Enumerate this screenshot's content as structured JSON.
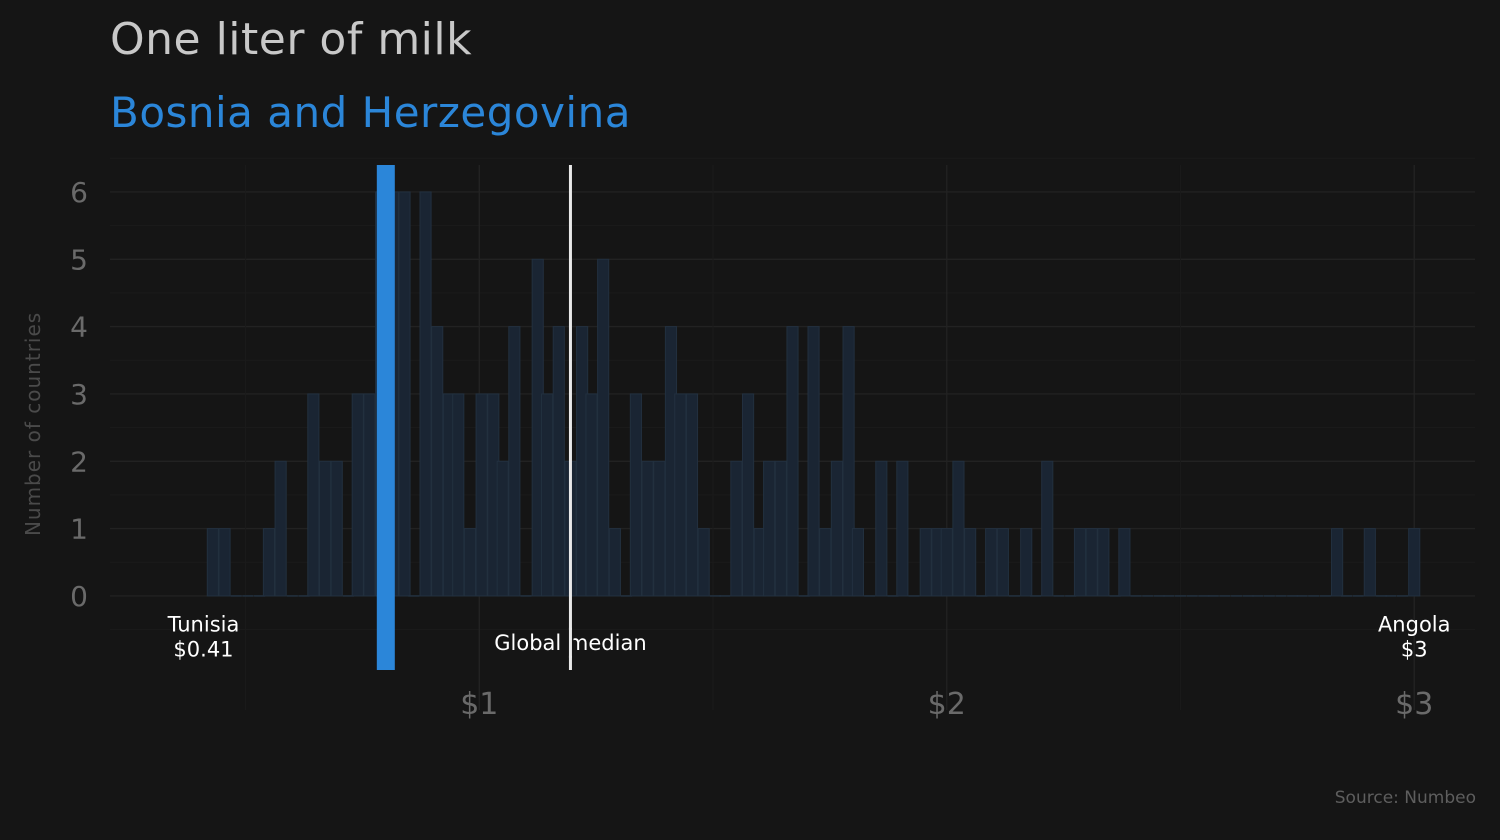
{
  "title": "One liter of milk",
  "subtitle": "Bosnia and Herzegovina",
  "source": "Source: Numbeo",
  "colors": {
    "background": "#151515",
    "highlight": "#2b86d9",
    "bars": "#1a2533",
    "median": "#e8e8e8",
    "text": "#c8c8c8"
  },
  "chart_data": {
    "type": "bar",
    "ylabel": "Number of countries",
    "xlabel": "",
    "x_ticks": [
      {
        "value": 1,
        "label": "$1"
      },
      {
        "value": 2,
        "label": "$2"
      },
      {
        "value": 3,
        "label": "$3"
      }
    ],
    "y_ticks": [
      0,
      1,
      2,
      3,
      4,
      5,
      6
    ],
    "xlim": [
      0.21,
      3.13
    ],
    "ylim": [
      -1.1,
      6.4
    ],
    "bin_width": 0.0238,
    "bins": [
      {
        "x": 0.43,
        "count": 1
      },
      {
        "x": 0.455,
        "count": 1
      },
      {
        "x": 0.48,
        "count": 0
      },
      {
        "x": 0.505,
        "count": 0
      },
      {
        "x": 0.53,
        "count": 0
      },
      {
        "x": 0.55,
        "count": 1
      },
      {
        "x": 0.575,
        "count": 2
      },
      {
        "x": 0.6,
        "count": 0
      },
      {
        "x": 0.625,
        "count": 0
      },
      {
        "x": 0.645,
        "count": 3
      },
      {
        "x": 0.67,
        "count": 2
      },
      {
        "x": 0.695,
        "count": 2
      },
      {
        "x": 0.72,
        "count": 0
      },
      {
        "x": 0.74,
        "count": 3
      },
      {
        "x": 0.765,
        "count": 3
      },
      {
        "x": 0.79,
        "count": 6
      },
      {
        "x": 0.815,
        "count": 6
      },
      {
        "x": 0.84,
        "count": 6
      },
      {
        "x": 0.86,
        "count": 0
      },
      {
        "x": 0.885,
        "count": 6
      },
      {
        "x": 0.91,
        "count": 4
      },
      {
        "x": 0.935,
        "count": 3
      },
      {
        "x": 0.955,
        "count": 3
      },
      {
        "x": 0.98,
        "count": 1
      },
      {
        "x": 1.005,
        "count": 3
      },
      {
        "x": 1.03,
        "count": 3
      },
      {
        "x": 1.05,
        "count": 2
      },
      {
        "x": 1.075,
        "count": 4
      },
      {
        "x": 1.1,
        "count": 0
      },
      {
        "x": 1.125,
        "count": 5
      },
      {
        "x": 1.145,
        "count": 3
      },
      {
        "x": 1.17,
        "count": 4
      },
      {
        "x": 1.195,
        "count": 2
      },
      {
        "x": 1.22,
        "count": 4
      },
      {
        "x": 1.24,
        "count": 3
      },
      {
        "x": 1.265,
        "count": 5
      },
      {
        "x": 1.29,
        "count": 1
      },
      {
        "x": 1.315,
        "count": 0
      },
      {
        "x": 1.335,
        "count": 3
      },
      {
        "x": 1.36,
        "count": 2
      },
      {
        "x": 1.385,
        "count": 2
      },
      {
        "x": 1.41,
        "count": 4
      },
      {
        "x": 1.43,
        "count": 3
      },
      {
        "x": 1.455,
        "count": 3
      },
      {
        "x": 1.48,
        "count": 1
      },
      {
        "x": 1.505,
        "count": 0
      },
      {
        "x": 1.525,
        "count": 0
      },
      {
        "x": 1.55,
        "count": 2
      },
      {
        "x": 1.575,
        "count": 3
      },
      {
        "x": 1.6,
        "count": 1
      },
      {
        "x": 1.62,
        "count": 2
      },
      {
        "x": 1.645,
        "count": 2
      },
      {
        "x": 1.67,
        "count": 4
      },
      {
        "x": 1.695,
        "count": 0
      },
      {
        "x": 1.715,
        "count": 4
      },
      {
        "x": 1.74,
        "count": 1
      },
      {
        "x": 1.765,
        "count": 2
      },
      {
        "x": 1.79,
        "count": 4
      },
      {
        "x": 1.81,
        "count": 1
      },
      {
        "x": 1.835,
        "count": 0
      },
      {
        "x": 1.86,
        "count": 2
      },
      {
        "x": 1.885,
        "count": 0
      },
      {
        "x": 1.905,
        "count": 2
      },
      {
        "x": 1.93,
        "count": 0
      },
      {
        "x": 1.955,
        "count": 1
      },
      {
        "x": 1.98,
        "count": 1
      },
      {
        "x": 2.0,
        "count": 1
      },
      {
        "x": 2.025,
        "count": 2
      },
      {
        "x": 2.05,
        "count": 1
      },
      {
        "x": 2.075,
        "count": 0
      },
      {
        "x": 2.095,
        "count": 1
      },
      {
        "x": 2.12,
        "count": 1
      },
      {
        "x": 2.145,
        "count": 0
      },
      {
        "x": 2.17,
        "count": 1
      },
      {
        "x": 2.19,
        "count": 0
      },
      {
        "x": 2.215,
        "count": 2
      },
      {
        "x": 2.24,
        "count": 0
      },
      {
        "x": 2.265,
        "count": 0
      },
      {
        "x": 2.285,
        "count": 1
      },
      {
        "x": 2.31,
        "count": 1
      },
      {
        "x": 2.335,
        "count": 1
      },
      {
        "x": 2.36,
        "count": 0
      },
      {
        "x": 2.38,
        "count": 1
      },
      {
        "x": 2.405,
        "count": 0
      },
      {
        "x": 2.43,
        "count": 0
      },
      {
        "x": 2.455,
        "count": 0
      },
      {
        "x": 2.475,
        "count": 0
      },
      {
        "x": 2.5,
        "count": 0
      },
      {
        "x": 2.525,
        "count": 0
      },
      {
        "x": 2.55,
        "count": 0
      },
      {
        "x": 2.57,
        "count": 0
      },
      {
        "x": 2.595,
        "count": 0
      },
      {
        "x": 2.62,
        "count": 0
      },
      {
        "x": 2.645,
        "count": 0
      },
      {
        "x": 2.665,
        "count": 0
      },
      {
        "x": 2.69,
        "count": 0
      },
      {
        "x": 2.715,
        "count": 0
      },
      {
        "x": 2.74,
        "count": 0
      },
      {
        "x": 2.76,
        "count": 0
      },
      {
        "x": 2.785,
        "count": 0
      },
      {
        "x": 2.81,
        "count": 0
      },
      {
        "x": 2.835,
        "count": 1
      },
      {
        "x": 2.855,
        "count": 0
      },
      {
        "x": 2.88,
        "count": 0
      },
      {
        "x": 2.905,
        "count": 1
      },
      {
        "x": 2.93,
        "count": 0
      },
      {
        "x": 2.95,
        "count": 0
      },
      {
        "x": 2.975,
        "count": 0
      },
      {
        "x": 3.0,
        "count": 1
      }
    ],
    "highlight": {
      "label": "Bosnia and Herzegovina",
      "x": 0.8
    },
    "median": {
      "label": "Global median",
      "x": 1.195
    },
    "annotations": [
      {
        "country": "Tunisia",
        "price": "$0.41",
        "x": 0.41
      },
      {
        "country": "Angola",
        "price": "$3",
        "x": 3.0
      }
    ]
  }
}
